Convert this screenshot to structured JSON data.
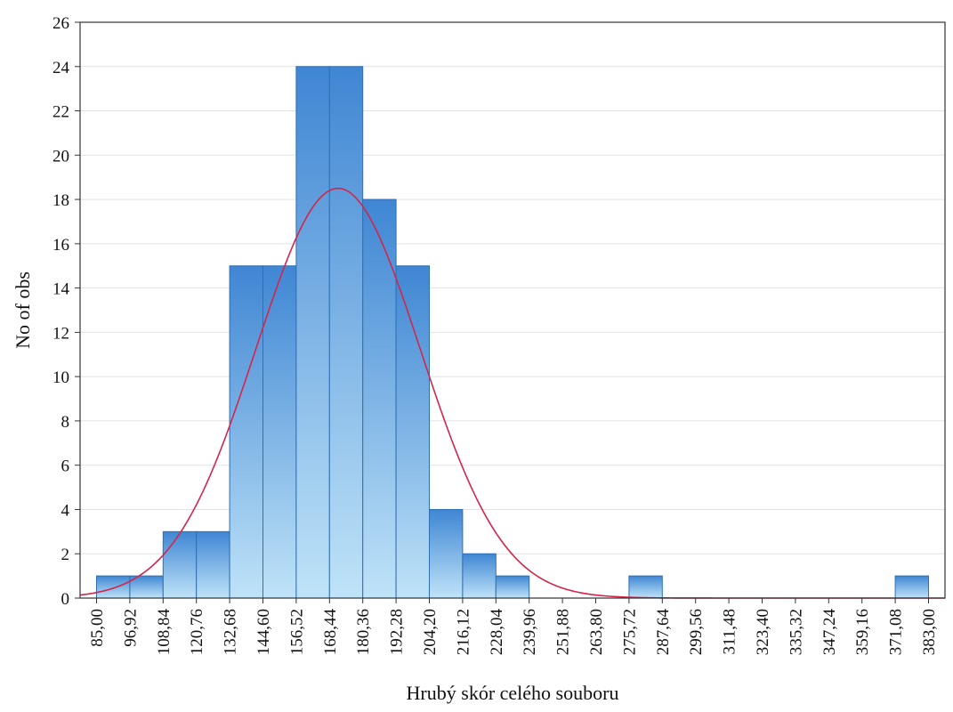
{
  "chart_data": {
    "type": "bar",
    "xlabel": "Hrubý skór celého souboru",
    "ylabel": "No of obs",
    "bin_edges": [
      85.0,
      96.92,
      108.84,
      120.76,
      132.68,
      144.6,
      156.52,
      168.44,
      180.36,
      192.28,
      204.2,
      216.12,
      228.04,
      239.96,
      251.88,
      263.8,
      275.72,
      287.64,
      299.56,
      311.48,
      323.4,
      335.32,
      347.24,
      359.16,
      371.08,
      383.0
    ],
    "x_tick_labels": [
      "85,00",
      "96,92",
      "108,84",
      "120,76",
      "132,68",
      "144,60",
      "156,52",
      "168,44",
      "180,36",
      "192,28",
      "204,20",
      "216,12",
      "228,04",
      "239,96",
      "251,88",
      "263,80",
      "275,72",
      "287,64",
      "299,56",
      "311,48",
      "323,40",
      "335,32",
      "347,24",
      "359,16",
      "371,08",
      "383,00"
    ],
    "values": [
      1,
      1,
      3,
      3,
      15,
      15,
      24,
      24,
      18,
      15,
      4,
      2,
      1,
      0,
      0,
      0,
      1,
      0,
      0,
      0,
      0,
      0,
      0,
      0,
      1
    ],
    "ylim": [
      0,
      26
    ],
    "y_ticks": [
      0,
      2,
      4,
      6,
      8,
      10,
      12,
      14,
      16,
      18,
      20,
      22,
      24,
      26
    ],
    "grid": true,
    "normal_curve": {
      "color": "#d2264a",
      "mean": 171.5,
      "sd": 29.5,
      "peak": 18.5
    },
    "bar_color_top": "#3f86d3",
    "bar_color_bottom": "#bfe3f8",
    "bar_edge_color": "#2f6fb5"
  }
}
